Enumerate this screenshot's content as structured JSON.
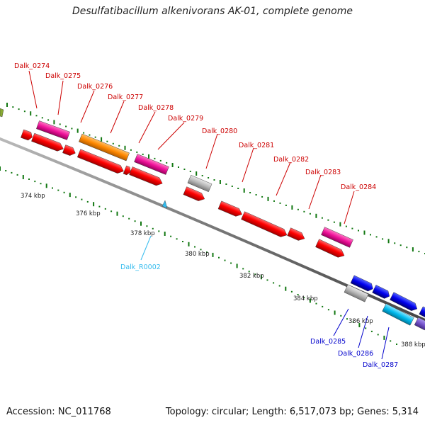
{
  "title": "Desulfatibacillum alkenivorans AK-01, complete genome",
  "footer": {
    "accession": "Accession: NC_011768",
    "summary": "Topology: circular; Length: 6,517,073 bp; Genes: 5,314"
  },
  "scale_labels": [
    "374 kbp",
    "376 kbp",
    "378 kbp",
    "380 kbp",
    "382 kbp",
    "384 kbp",
    "386 kbp",
    "388 kbp"
  ],
  "gene_labels": [
    "Dalk_0274",
    "Dalk_0275",
    "Dalk_0276",
    "Dalk_0277",
    "Dalk_0278",
    "Dalk_0279",
    "Dalk_0280",
    "Dalk_0281",
    "Dalk_0282",
    "Dalk_0283",
    "Dalk_0284",
    "Dalk_R0002",
    "Dalk_0285",
    "Dalk_0286",
    "Dalk_0287"
  ],
  "colors": {
    "label_red": "#cc0000",
    "label_cyan": "#33bbee",
    "label_blue": "#0000cc",
    "backbone": "#888888",
    "tick_green": "#117711",
    "gene_red": "#ff0000",
    "gene_pink": "#ee1199",
    "gene_orange": "#ff8800",
    "gene_gray": "#b8b8b8",
    "gene_blue": "#0000ee",
    "gene_cyan": "#00bbee",
    "gene_purple": "#7755cc",
    "trna_cyan": "#33bbee"
  }
}
